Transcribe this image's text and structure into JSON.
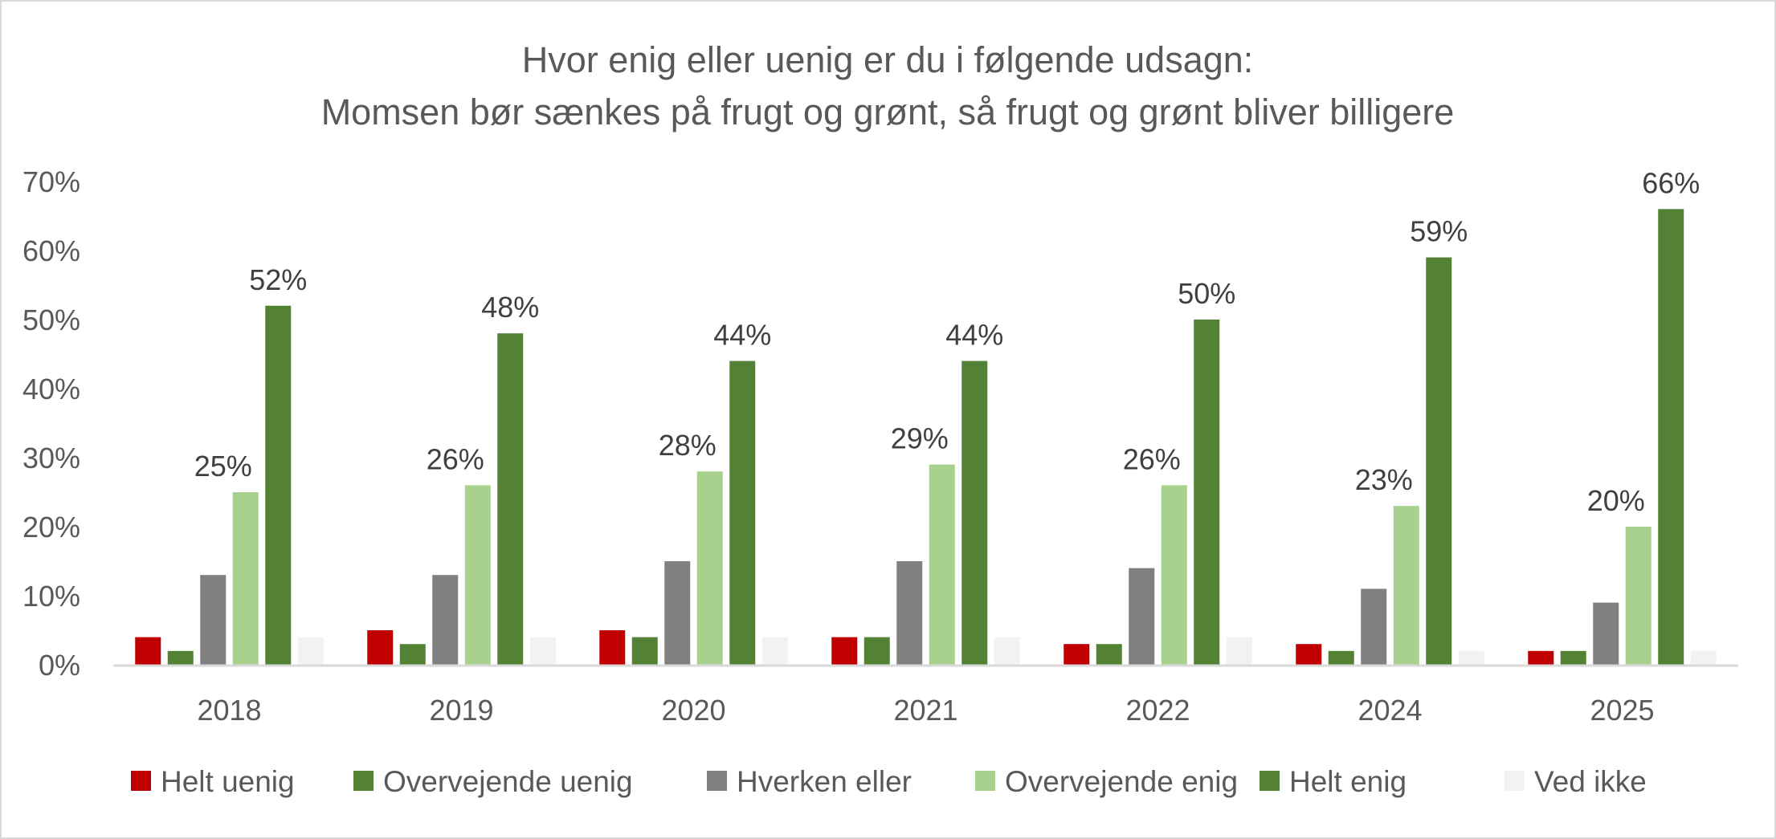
{
  "chart_data": {
    "type": "bar",
    "title": [
      "Hvor enig eller uenig er du i følgende udsagn:",
      "Momsen bør sænkes på frugt og grønt, så frugt og grønt bliver billigere"
    ],
    "xlabel": "",
    "ylabel": "",
    "ylim": [
      0,
      70
    ],
    "yticks": [
      "0%",
      "10%",
      "20%",
      "30%",
      "40%",
      "50%",
      "60%",
      "70%"
    ],
    "grid": false,
    "legend_position": "bottom",
    "categories": [
      "2018",
      "2019",
      "2020",
      "2021",
      "2022",
      "2024",
      "2025"
    ],
    "series": [
      {
        "name": "Helt uenig",
        "color": "#C00000",
        "labeled": false,
        "values": [
          4,
          5,
          5,
          4,
          3,
          3,
          2
        ]
      },
      {
        "name": "Overvejende uenig",
        "color": "#548235",
        "labeled": false,
        "values": [
          2,
          3,
          4,
          4,
          3,
          2,
          2
        ]
      },
      {
        "name": "Hverken eller",
        "color": "#808080",
        "labeled": false,
        "values": [
          13,
          13,
          15,
          15,
          14,
          11,
          9
        ]
      },
      {
        "name": "Overvejende enig",
        "color": "#A9D18E",
        "labeled": true,
        "values": [
          25,
          26,
          28,
          29,
          26,
          23,
          20
        ]
      },
      {
        "name": "Helt enig",
        "color": "#548235",
        "labeled": true,
        "values": [
          52,
          48,
          44,
          44,
          50,
          59,
          66
        ]
      },
      {
        "name": "Ved ikke",
        "color": "#F2F2F2",
        "labeled": false,
        "values": [
          4,
          4,
          4,
          4,
          4,
          2,
          2
        ]
      }
    ]
  }
}
